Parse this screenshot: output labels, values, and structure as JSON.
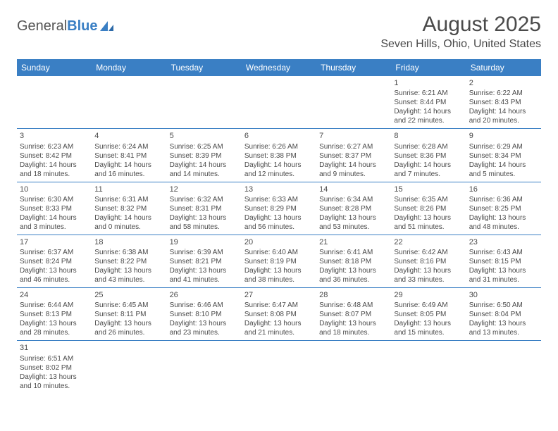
{
  "logo": {
    "general": "General",
    "blue": "Blue"
  },
  "title": "August 2025",
  "location": "Seven Hills, Ohio, United States",
  "colors": {
    "header_bg": "#3a7fc4",
    "header_text": "#ffffff",
    "body_text": "#4a4a4a",
    "border": "#3a7fc4",
    "page_bg": "#ffffff"
  },
  "dayHeaders": [
    "Sunday",
    "Monday",
    "Tuesday",
    "Wednesday",
    "Thursday",
    "Friday",
    "Saturday"
  ],
  "weeks": [
    [
      null,
      null,
      null,
      null,
      null,
      {
        "n": "1",
        "sunrise": "Sunrise: 6:21 AM",
        "sunset": "Sunset: 8:44 PM",
        "day": "Daylight: 14 hours and 22 minutes."
      },
      {
        "n": "2",
        "sunrise": "Sunrise: 6:22 AM",
        "sunset": "Sunset: 8:43 PM",
        "day": "Daylight: 14 hours and 20 minutes."
      }
    ],
    [
      {
        "n": "3",
        "sunrise": "Sunrise: 6:23 AM",
        "sunset": "Sunset: 8:42 PM",
        "day": "Daylight: 14 hours and 18 minutes."
      },
      {
        "n": "4",
        "sunrise": "Sunrise: 6:24 AM",
        "sunset": "Sunset: 8:41 PM",
        "day": "Daylight: 14 hours and 16 minutes."
      },
      {
        "n": "5",
        "sunrise": "Sunrise: 6:25 AM",
        "sunset": "Sunset: 8:39 PM",
        "day": "Daylight: 14 hours and 14 minutes."
      },
      {
        "n": "6",
        "sunrise": "Sunrise: 6:26 AM",
        "sunset": "Sunset: 8:38 PM",
        "day": "Daylight: 14 hours and 12 minutes."
      },
      {
        "n": "7",
        "sunrise": "Sunrise: 6:27 AM",
        "sunset": "Sunset: 8:37 PM",
        "day": "Daylight: 14 hours and 9 minutes."
      },
      {
        "n": "8",
        "sunrise": "Sunrise: 6:28 AM",
        "sunset": "Sunset: 8:36 PM",
        "day": "Daylight: 14 hours and 7 minutes."
      },
      {
        "n": "9",
        "sunrise": "Sunrise: 6:29 AM",
        "sunset": "Sunset: 8:34 PM",
        "day": "Daylight: 14 hours and 5 minutes."
      }
    ],
    [
      {
        "n": "10",
        "sunrise": "Sunrise: 6:30 AM",
        "sunset": "Sunset: 8:33 PM",
        "day": "Daylight: 14 hours and 3 minutes."
      },
      {
        "n": "11",
        "sunrise": "Sunrise: 6:31 AM",
        "sunset": "Sunset: 8:32 PM",
        "day": "Daylight: 14 hours and 0 minutes."
      },
      {
        "n": "12",
        "sunrise": "Sunrise: 6:32 AM",
        "sunset": "Sunset: 8:31 PM",
        "day": "Daylight: 13 hours and 58 minutes."
      },
      {
        "n": "13",
        "sunrise": "Sunrise: 6:33 AM",
        "sunset": "Sunset: 8:29 PM",
        "day": "Daylight: 13 hours and 56 minutes."
      },
      {
        "n": "14",
        "sunrise": "Sunrise: 6:34 AM",
        "sunset": "Sunset: 8:28 PM",
        "day": "Daylight: 13 hours and 53 minutes."
      },
      {
        "n": "15",
        "sunrise": "Sunrise: 6:35 AM",
        "sunset": "Sunset: 8:26 PM",
        "day": "Daylight: 13 hours and 51 minutes."
      },
      {
        "n": "16",
        "sunrise": "Sunrise: 6:36 AM",
        "sunset": "Sunset: 8:25 PM",
        "day": "Daylight: 13 hours and 48 minutes."
      }
    ],
    [
      {
        "n": "17",
        "sunrise": "Sunrise: 6:37 AM",
        "sunset": "Sunset: 8:24 PM",
        "day": "Daylight: 13 hours and 46 minutes."
      },
      {
        "n": "18",
        "sunrise": "Sunrise: 6:38 AM",
        "sunset": "Sunset: 8:22 PM",
        "day": "Daylight: 13 hours and 43 minutes."
      },
      {
        "n": "19",
        "sunrise": "Sunrise: 6:39 AM",
        "sunset": "Sunset: 8:21 PM",
        "day": "Daylight: 13 hours and 41 minutes."
      },
      {
        "n": "20",
        "sunrise": "Sunrise: 6:40 AM",
        "sunset": "Sunset: 8:19 PM",
        "day": "Daylight: 13 hours and 38 minutes."
      },
      {
        "n": "21",
        "sunrise": "Sunrise: 6:41 AM",
        "sunset": "Sunset: 8:18 PM",
        "day": "Daylight: 13 hours and 36 minutes."
      },
      {
        "n": "22",
        "sunrise": "Sunrise: 6:42 AM",
        "sunset": "Sunset: 8:16 PM",
        "day": "Daylight: 13 hours and 33 minutes."
      },
      {
        "n": "23",
        "sunrise": "Sunrise: 6:43 AM",
        "sunset": "Sunset: 8:15 PM",
        "day": "Daylight: 13 hours and 31 minutes."
      }
    ],
    [
      {
        "n": "24",
        "sunrise": "Sunrise: 6:44 AM",
        "sunset": "Sunset: 8:13 PM",
        "day": "Daylight: 13 hours and 28 minutes."
      },
      {
        "n": "25",
        "sunrise": "Sunrise: 6:45 AM",
        "sunset": "Sunset: 8:11 PM",
        "day": "Daylight: 13 hours and 26 minutes."
      },
      {
        "n": "26",
        "sunrise": "Sunrise: 6:46 AM",
        "sunset": "Sunset: 8:10 PM",
        "day": "Daylight: 13 hours and 23 minutes."
      },
      {
        "n": "27",
        "sunrise": "Sunrise: 6:47 AM",
        "sunset": "Sunset: 8:08 PM",
        "day": "Daylight: 13 hours and 21 minutes."
      },
      {
        "n": "28",
        "sunrise": "Sunrise: 6:48 AM",
        "sunset": "Sunset: 8:07 PM",
        "day": "Daylight: 13 hours and 18 minutes."
      },
      {
        "n": "29",
        "sunrise": "Sunrise: 6:49 AM",
        "sunset": "Sunset: 8:05 PM",
        "day": "Daylight: 13 hours and 15 minutes."
      },
      {
        "n": "30",
        "sunrise": "Sunrise: 6:50 AM",
        "sunset": "Sunset: 8:04 PM",
        "day": "Daylight: 13 hours and 13 minutes."
      }
    ],
    [
      {
        "n": "31",
        "sunrise": "Sunrise: 6:51 AM",
        "sunset": "Sunset: 8:02 PM",
        "day": "Daylight: 13 hours and 10 minutes."
      },
      null,
      null,
      null,
      null,
      null,
      null
    ]
  ]
}
